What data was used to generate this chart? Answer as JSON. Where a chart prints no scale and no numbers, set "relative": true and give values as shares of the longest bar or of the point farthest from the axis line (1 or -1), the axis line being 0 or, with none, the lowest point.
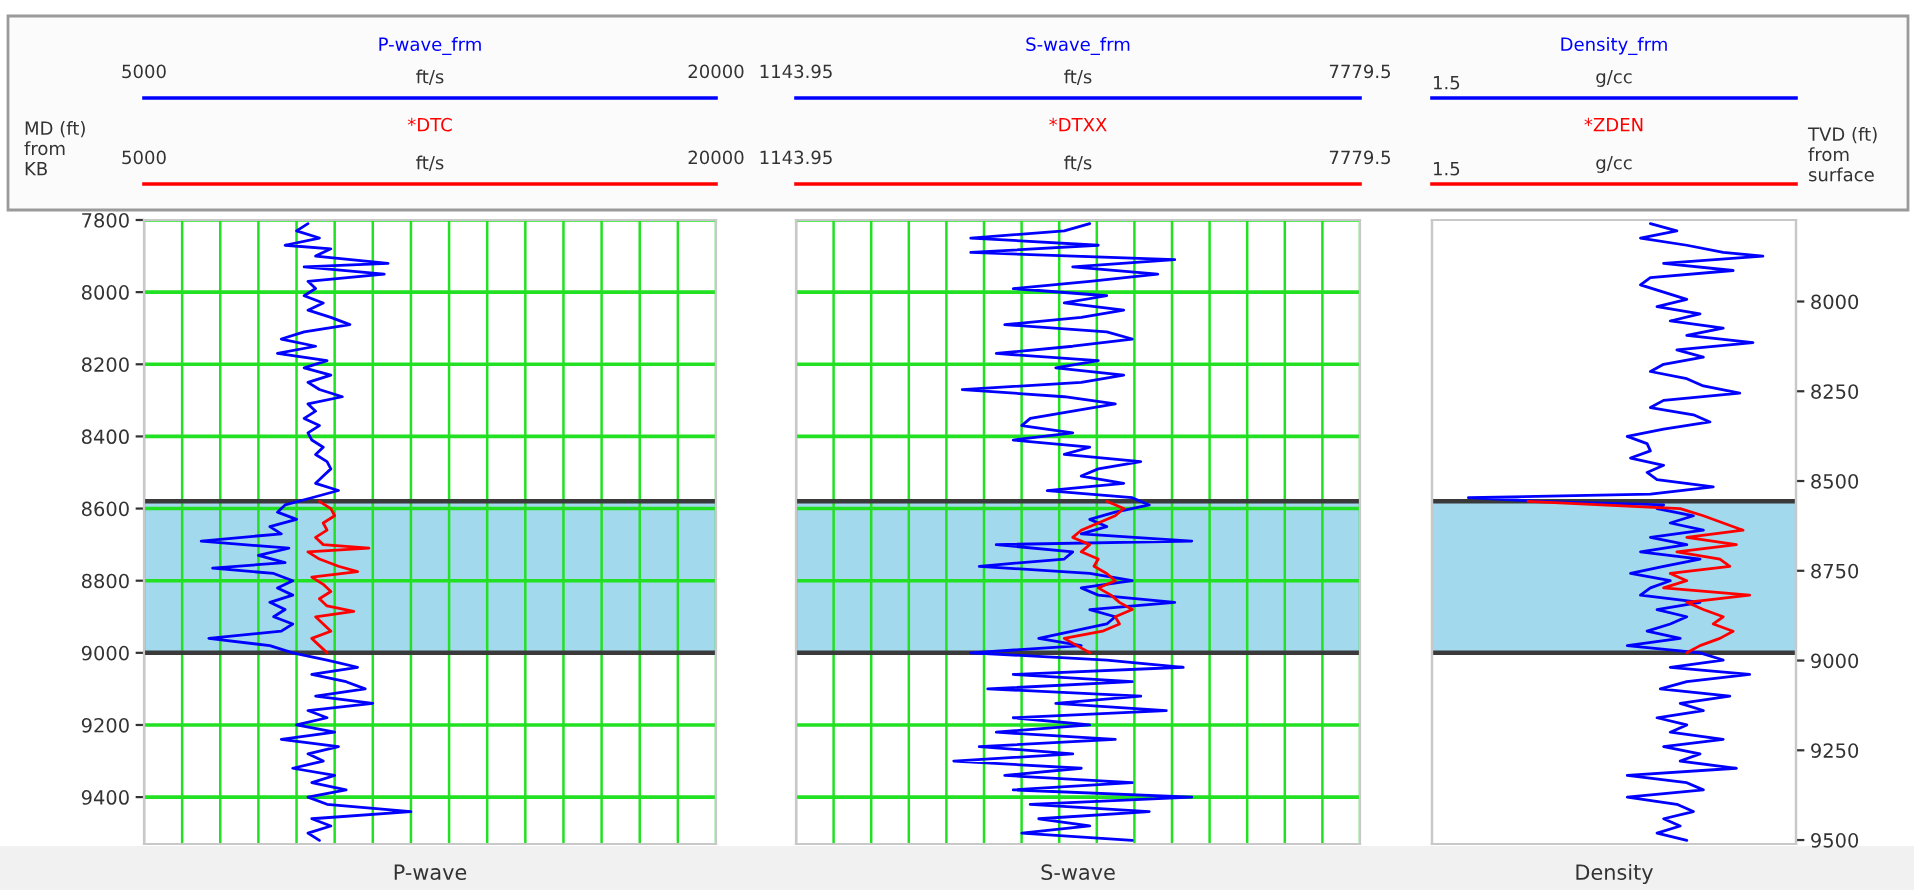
{
  "chart_data": [
    {
      "type": "line",
      "orientation": "horizontal",
      "title": "P-wave",
      "xlabel": "ft/s",
      "x2label": "ft/s",
      "x2lim": [
        5000,
        20000
      ],
      "x2ticks": [
        5000,
        20000
      ],
      "ylabel": "MD (ft)\nfrom\nKB",
      "xlim": [
        5000,
        20000
      ],
      "xticks": [
        5000,
        {
          "value": 6000,
          "label": null
        },
        {
          "value": 7000,
          "label": null
        },
        {
          "value": 8000,
          "label": null
        },
        {
          "value": 9000,
          "label": null
        },
        {
          "value": 10000,
          "label": null
        },
        {
          "value": 11000,
          "label": null
        },
        {
          "value": 12000,
          "label": null
        },
        {
          "value": 13000,
          "label": null
        },
        {
          "value": 14000,
          "label": null
        },
        {
          "value": 15000,
          "label": null
        },
        {
          "value": 16000,
          "label": null
        },
        {
          "value": 17000,
          "label": null
        },
        {
          "value": 18000,
          "label": null
        },
        {
          "value": 19000,
          "label": null
        },
        20000
      ],
      "ylim": [
        9530,
        7800
      ],
      "yticks": [
        7800,
        8000,
        8200,
        8400,
        8600,
        8800,
        9000,
        9200,
        9400
      ],
      "grid": true,
      "bands": [
        {
          "axis": "y",
          "from": 8580,
          "to": 9000,
          "color": "#a3d9ec"
        }
      ],
      "ref_lines": [
        {
          "axis": "y",
          "value": 8580,
          "color": "#3a3a3a"
        },
        {
          "axis": "y",
          "value": 9000,
          "color": "#3a3a3a"
        }
      ],
      "series": [
        {
          "name": "P-wave_frm",
          "color": "#0000ff",
          "x": [
            7810,
            7830,
            7850,
            7870,
            7880,
            7900,
            7920,
            7930,
            7950,
            7970,
            7990,
            8010,
            8030,
            8050,
            8070,
            8090,
            8110,
            8130,
            8150,
            8170,
            8190,
            8210,
            8230,
            8250,
            8270,
            8290,
            8310,
            8330,
            8350,
            8370,
            8390,
            8410,
            8430,
            8450,
            8470,
            8490,
            8510,
            8530,
            8550,
            8570,
            8590,
            8610,
            8630,
            8650,
            8670,
            8690,
            8710,
            8730,
            8750,
            8765,
            8780,
            8800,
            8820,
            8840,
            8860,
            8880,
            8900,
            8920,
            8940,
            8960,
            8980,
            9000,
            9020,
            9040,
            9060,
            9080,
            9100,
            9120,
            9140,
            9160,
            9180,
            9200,
            9220,
            9240,
            9260,
            9280,
            9300,
            9320,
            9340,
            9360,
            9380,
            9400,
            9420,
            9440,
            9460,
            9480,
            9500,
            9520
          ],
          "values": [
            9300,
            9000,
            9600,
            8700,
            9900,
            9500,
            11400,
            9200,
            11300,
            9300,
            9500,
            9200,
            9700,
            9300,
            9900,
            10400,
            9200,
            8600,
            9500,
            8500,
            9800,
            9200,
            9900,
            9300,
            9600,
            10200,
            9300,
            9500,
            9200,
            9600,
            9300,
            9400,
            9700,
            9500,
            9800,
            9900,
            9700,
            9500,
            10100,
            9400,
            8700,
            8500,
            9000,
            8300,
            8600,
            6500,
            8800,
            8000,
            8700,
            6800,
            8400,
            8900,
            8500,
            8900,
            8300,
            8700,
            8400,
            8900,
            8600,
            6700,
            8300,
            8900,
            9800,
            10600,
            9400,
            10300,
            10800,
            9500,
            11000,
            9300,
            9800,
            9000,
            10000,
            8600,
            10100,
            9300,
            9700,
            8900,
            10000,
            9400,
            10300,
            9300,
            9800,
            12000,
            9400,
            9900,
            9300,
            9600
          ]
        },
        {
          "name": "*DTC",
          "color": "#ff0000",
          "x": [
            8580,
            8600,
            8620,
            8640,
            8660,
            8680,
            8700,
            8710,
            8720,
            8740,
            8760,
            8775,
            8790,
            8810,
            8830,
            8850,
            8870,
            8885,
            8900,
            8920,
            8940,
            8960,
            8980,
            9000
          ],
          "values": [
            9600,
            9900,
            10000,
            9700,
            9800,
            9500,
            9700,
            10900,
            9300,
            9600,
            10100,
            10600,
            9400,
            9700,
            9900,
            9600,
            9800,
            10500,
            9500,
            9700,
            9900,
            9400,
            9600,
            9800
          ]
        }
      ]
    },
    {
      "type": "line",
      "orientation": "horizontal",
      "title": "S-wave",
      "xlabel": "ft/s",
      "x2label": "ft/s",
      "x2lim": [
        1143.95,
        7779.5
      ],
      "x2ticks": [
        1143.95,
        7779.5
      ],
      "xlim": [
        1143.95,
        7779.5
      ],
      "xticks": [
        1143.95,
        {
          "value": 1586.32,
          "label": null
        },
        {
          "value": 2028.69,
          "label": null
        },
        {
          "value": 2471.06,
          "label": null
        },
        {
          "value": 2913.43,
          "label": null
        },
        {
          "value": 3355.8,
          "label": null
        },
        {
          "value": 3798.17,
          "label": null
        },
        {
          "value": 4240.54,
          "label": null
        },
        {
          "value": 4682.91,
          "label": null
        },
        {
          "value": 5125.28,
          "label": null
        },
        {
          "value": 5567.65,
          "label": null
        },
        {
          "value": 6010.02,
          "label": null
        },
        {
          "value": 6452.39,
          "label": null
        },
        {
          "value": 6894.76,
          "label": null
        },
        {
          "value": 7337.13,
          "label": null
        },
        7779.5
      ],
      "ylim": [
        9530,
        7800
      ],
      "yticks": [
        7800,
        8000,
        8200,
        8400,
        8600,
        8800,
        9000,
        9200,
        9400
      ],
      "grid": true,
      "tick_labels": "x",
      "bands": [
        {
          "axis": "y",
          "from": 8580,
          "to": 9000,
          "color": "#a3d9ec"
        }
      ],
      "ref_lines": [
        {
          "axis": "y",
          "value": 8580,
          "color": "#3a3a3a"
        },
        {
          "axis": "y",
          "value": 9000,
          "color": "#3a3a3a"
        }
      ],
      "series": [
        {
          "name": "S-wave_frm",
          "color": "#0000ff",
          "x": [
            7810,
            7830,
            7850,
            7870,
            7890,
            7910,
            7930,
            7950,
            7970,
            7990,
            8010,
            8030,
            8050,
            8070,
            8090,
            8110,
            8130,
            8150,
            8170,
            8190,
            8210,
            8230,
            8250,
            8270,
            8290,
            8310,
            8330,
            8350,
            8370,
            8390,
            8410,
            8430,
            8450,
            8470,
            8490,
            8510,
            8530,
            8550,
            8570,
            8590,
            8610,
            8630,
            8650,
            8670,
            8690,
            8700,
            8720,
            8740,
            8760,
            8780,
            8800,
            8820,
            8840,
            8860,
            8880,
            8900,
            8920,
            8940,
            8960,
            8980,
            9000,
            9020,
            9040,
            9060,
            9080,
            9100,
            9120,
            9140,
            9160,
            9180,
            9200,
            9220,
            9240,
            9260,
            9280,
            9300,
            9320,
            9340,
            9360,
            9380,
            9400,
            9420,
            9440,
            9460,
            9480,
            9500,
            9520
          ],
          "values": [
            4600,
            4300,
            3200,
            4700,
            3200,
            5600,
            4400,
            5400,
            4600,
            3700,
            4800,
            4300,
            5000,
            4500,
            3600,
            4800,
            5100,
            4400,
            3500,
            4700,
            4200,
            5000,
            4500,
            3100,
            4300,
            4900,
            4400,
            3900,
            3800,
            4400,
            3700,
            4600,
            4300,
            5200,
            4700,
            4500,
            5000,
            4100,
            5100,
            5300,
            4900,
            4600,
            4800,
            4500,
            5800,
            3500,
            4400,
            4300,
            3300,
            4600,
            5100,
            4500,
            4700,
            5600,
            4600,
            4900,
            4800,
            4400,
            4000,
            4500,
            3200,
            4800,
            5700,
            3700,
            5100,
            3400,
            5200,
            4200,
            5500,
            3700,
            4600,
            3500,
            4900,
            3300,
            4400,
            3000,
            4500,
            3600,
            5100,
            3700,
            5800,
            3900,
            5300,
            4000,
            4600,
            3800,
            5100
          ]
        },
        {
          "name": "*DTXX",
          "color": "#ff0000",
          "x": [
            8580,
            8600,
            8620,
            8640,
            8660,
            8680,
            8700,
            8720,
            8740,
            8760,
            8780,
            8800,
            8820,
            8840,
            8860,
            8880,
            8900,
            8920,
            8940,
            8960,
            8980,
            9000
          ],
          "values": [
            4800,
            5000,
            4900,
            4700,
            4500,
            4400,
            4600,
            4500,
            4700,
            4650,
            4800,
            4900,
            4700,
            4850,
            4950,
            5100,
            4900,
            4950,
            4750,
            4300,
            4450,
            4600
          ]
        }
      ]
    },
    {
      "type": "line",
      "orientation": "horizontal",
      "relative": true,
      "title": "Density",
      "xlabel": "g/cc",
      "x2label": "g/cc",
      "y2label": "TVD (ft)\nfrom\nsurface",
      "annotations": [
        "1.5",
        "1.5"
      ],
      "ylim": [
        9530,
        7800
      ],
      "y2lim": [
        9511,
        7773
      ],
      "y2ticks": [
        8000,
        8250,
        8500,
        8750,
        9000,
        9250,
        9500
      ],
      "bands": [
        {
          "axis": "y",
          "from": 8580,
          "to": 9000,
          "color": "#a3d9ec"
        }
      ],
      "ref_lines": [
        {
          "axis": "y",
          "value": 8580,
          "color": "#3a3a3a"
        },
        {
          "axis": "y",
          "value": 9000,
          "color": "#3a3a3a"
        }
      ],
      "series": [
        {
          "name": "Density_frm",
          "color": "#0000ff",
          "x": [
            7810,
            7830,
            7850,
            7870,
            7890,
            7900,
            7920,
            7940,
            7960,
            7980,
            8000,
            8020,
            8040,
            8060,
            8080,
            8100,
            8120,
            8140,
            8160,
            8180,
            8200,
            8220,
            8240,
            8260,
            8280,
            8300,
            8320,
            8340,
            8360,
            8380,
            8400,
            8420,
            8440,
            8460,
            8480,
            8500,
            8520,
            8540,
            8560,
            8570,
            8580,
            8590,
            8600,
            8620,
            8640,
            8660,
            8680,
            8700,
            8720,
            8740,
            8760,
            8780,
            8800,
            8820,
            8840,
            8860,
            8880,
            8900,
            8920,
            8940,
            8960,
            8980,
            9000,
            9020,
            9040,
            9060,
            9080,
            9100,
            9120,
            9140,
            9160,
            9180,
            9200,
            9220,
            9240,
            9260,
            9280,
            9300,
            9320,
            9340,
            9360,
            9380,
            9400,
            9420,
            9440,
            9460,
            9480,
            9500,
            9520
          ],
          "values": [
            0.66,
            0.74,
            0.63,
            0.77,
            0.88,
            1.0,
            0.7,
            0.91,
            0.66,
            0.63,
            0.7,
            0.77,
            0.68,
            0.81,
            0.72,
            0.88,
            0.77,
            0.97,
            0.74,
            0.82,
            0.7,
            0.66,
            0.77,
            0.82,
            0.93,
            0.7,
            0.66,
            0.79,
            0.84,
            0.7,
            0.59,
            0.65,
            0.66,
            0.6,
            0.7,
            0.65,
            0.68,
            0.85,
            0.66,
            0.11,
            0.33,
            0.7,
            0.68,
            0.79,
            0.72,
            0.82,
            0.66,
            0.77,
            0.63,
            0.81,
            0.7,
            0.6,
            0.72,
            0.66,
            0.63,
            0.81,
            0.68,
            0.77,
            0.72,
            0.65,
            0.75,
            0.59,
            0.81,
            0.88,
            0.72,
            0.96,
            0.77,
            0.69,
            0.9,
            0.75,
            0.82,
            0.68,
            0.77,
            0.72,
            0.88,
            0.7,
            0.81,
            0.75,
            0.92,
            0.59,
            0.77,
            0.82,
            0.59,
            0.74,
            0.79,
            0.7,
            0.75,
            0.68,
            0.77
          ]
        },
        {
          "name": "*ZDEN",
          "color": "#ff0000",
          "x": [
            8580,
            8600,
            8620,
            8640,
            8660,
            8680,
            8700,
            8720,
            8740,
            8760,
            8780,
            8800,
            8820,
            8840,
            8860,
            8880,
            8900,
            8920,
            8940,
            8960,
            8980,
            9000
          ],
          "values": [
            0.29,
            0.75,
            0.82,
            0.88,
            0.94,
            0.77,
            0.92,
            0.74,
            0.87,
            0.9,
            0.72,
            0.77,
            0.7,
            0.96,
            0.77,
            0.82,
            0.88,
            0.85,
            0.91,
            0.87,
            0.81,
            0.77
          ]
        }
      ]
    }
  ]
}
